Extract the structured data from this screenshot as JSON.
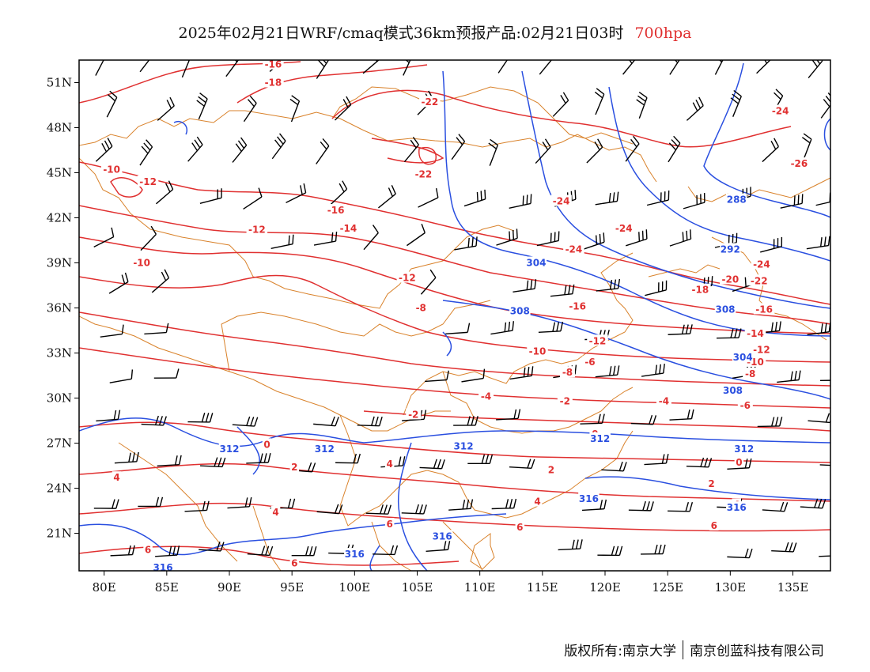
{
  "title": {
    "main": "2025年02月21日WRF/cmaq模式36km预报产品:02月21日03时",
    "level": "700hpa"
  },
  "colors": {
    "temperature_contour": "#e03030",
    "height_contour": "#2a4fe0",
    "borders": "#d9822b",
    "wind_barb": "#000000"
  },
  "map": {
    "lon_range": [
      78,
      138
    ],
    "lat_range": [
      18.5,
      52.5
    ],
    "lon_ticks": [
      {
        "v": 80,
        "label": "80E"
      },
      {
        "v": 85,
        "label": "85E"
      },
      {
        "v": 90,
        "label": "90E"
      },
      {
        "v": 95,
        "label": "95E"
      },
      {
        "v": 100,
        "label": "100E"
      },
      {
        "v": 105,
        "label": "105E"
      },
      {
        "v": 110,
        "label": "110E"
      },
      {
        "v": 115,
        "label": "115E"
      },
      {
        "v": 120,
        "label": "120E"
      },
      {
        "v": 125,
        "label": "125E"
      },
      {
        "v": 130,
        "label": "130E"
      },
      {
        "v": 135,
        "label": "135E"
      }
    ],
    "lat_ticks": [
      {
        "v": 51,
        "label": "51N"
      },
      {
        "v": 48,
        "label": "48N"
      },
      {
        "v": 45,
        "label": "45N"
      },
      {
        "v": 42,
        "label": "42N"
      },
      {
        "v": 39,
        "label": "39N"
      },
      {
        "v": 36,
        "label": "36N"
      },
      {
        "v": 33,
        "label": "33N"
      },
      {
        "v": 30,
        "label": "30N"
      },
      {
        "v": 27,
        "label": "27N"
      },
      {
        "v": 24,
        "label": "24N"
      },
      {
        "v": 21,
        "label": "21N"
      }
    ],
    "temperature_labels": [
      {
        "text": "-16",
        "lon": 93.5,
        "lat": 52.2
      },
      {
        "text": "-18",
        "lon": 93.5,
        "lat": 51.0
      },
      {
        "text": "-22",
        "lon": 106,
        "lat": 49.7
      },
      {
        "text": "-24",
        "lon": 134,
        "lat": 49.1
      },
      {
        "text": "-26",
        "lon": 135.5,
        "lat": 45.6
      },
      {
        "text": "-10",
        "lon": 80.6,
        "lat": 45.2
      },
      {
        "text": "-12",
        "lon": 83.5,
        "lat": 44.4
      },
      {
        "text": "-22",
        "lon": 105.5,
        "lat": 44.9
      },
      {
        "text": "-24",
        "lon": 116.5,
        "lat": 43.1
      },
      {
        "text": "-16",
        "lon": 98.5,
        "lat": 42.5
      },
      {
        "text": "-24",
        "lon": 121.5,
        "lat": 41.3
      },
      {
        "text": "-12",
        "lon": 92.2,
        "lat": 41.2
      },
      {
        "text": "-14",
        "lon": 99.5,
        "lat": 41.3
      },
      {
        "text": "-24",
        "lon": 117.5,
        "lat": 39.9
      },
      {
        "text": "-10",
        "lon": 83,
        "lat": 39.0
      },
      {
        "text": "-24",
        "lon": 132.5,
        "lat": 38.9
      },
      {
        "text": "-12",
        "lon": 104.2,
        "lat": 38.0
      },
      {
        "text": "-20",
        "lon": 130,
        "lat": 37.9
      },
      {
        "text": "-22",
        "lon": 132.3,
        "lat": 37.8
      },
      {
        "text": "-18",
        "lon": 127.6,
        "lat": 37.2
      },
      {
        "text": "-8",
        "lon": 105.3,
        "lat": 36.0
      },
      {
        "text": "-16",
        "lon": 117.8,
        "lat": 36.1
      },
      {
        "text": "-16",
        "lon": 132.7,
        "lat": 35.9
      },
      {
        "text": "-14",
        "lon": 132,
        "lat": 34.3
      },
      {
        "text": "-12",
        "lon": 119.4,
        "lat": 33.8
      },
      {
        "text": "-12",
        "lon": 132.5,
        "lat": 33.2
      },
      {
        "text": "-10",
        "lon": 114.6,
        "lat": 33.1
      },
      {
        "text": "-10",
        "lon": 132,
        "lat": 32.4
      },
      {
        "text": "-8",
        "lon": 131.6,
        "lat": 31.6
      },
      {
        "text": "-8",
        "lon": 117,
        "lat": 31.7
      },
      {
        "text": "-6",
        "lon": 118.8,
        "lat": 32.4
      },
      {
        "text": "-4",
        "lon": 110.5,
        "lat": 30.1
      },
      {
        "text": "-2",
        "lon": 116.8,
        "lat": 29.8
      },
      {
        "text": "-4",
        "lon": 124.7,
        "lat": 29.8
      },
      {
        "text": "-6",
        "lon": 131.2,
        "lat": 29.5
      },
      {
        "text": "-2",
        "lon": 104.7,
        "lat": 28.9
      },
      {
        "text": "0",
        "lon": 119.2,
        "lat": 27.6
      },
      {
        "text": "0",
        "lon": 93,
        "lat": 26.9
      },
      {
        "text": "2",
        "lon": 95.2,
        "lat": 25.4
      },
      {
        "text": "4",
        "lon": 102.8,
        "lat": 25.6
      },
      {
        "text": "2",
        "lon": 115.7,
        "lat": 25.2
      },
      {
        "text": "0",
        "lon": 130.7,
        "lat": 25.7
      },
      {
        "text": "4",
        "lon": 81,
        "lat": 24.7
      },
      {
        "text": "2",
        "lon": 128.5,
        "lat": 24.3
      },
      {
        "text": "4",
        "lon": 93.7,
        "lat": 22.4
      },
      {
        "text": "4",
        "lon": 114.6,
        "lat": 23.1
      },
      {
        "text": "4",
        "lon": 130.5,
        "lat": 22.9
      },
      {
        "text": "6",
        "lon": 102.8,
        "lat": 21.6
      },
      {
        "text": "6",
        "lon": 113.2,
        "lat": 21.4
      },
      {
        "text": "6",
        "lon": 128.7,
        "lat": 21.5
      },
      {
        "text": "6",
        "lon": 83.5,
        "lat": 19.9
      },
      {
        "text": "6",
        "lon": 95.2,
        "lat": 19.0
      }
    ],
    "height_labels": [
      {
        "text": "288",
        "lon": 130.5,
        "lat": 43.2
      },
      {
        "text": "292",
        "lon": 130,
        "lat": 39.9
      },
      {
        "text": "304",
        "lon": 114.5,
        "lat": 39.0
      },
      {
        "text": "308",
        "lon": 113.2,
        "lat": 35.8
      },
      {
        "text": "308",
        "lon": 129.6,
        "lat": 35.9
      },
      {
        "text": "304",
        "lon": 131,
        "lat": 32.7
      },
      {
        "text": "308",
        "lon": 130.2,
        "lat": 30.5
      },
      {
        "text": "312",
        "lon": 90,
        "lat": 26.6
      },
      {
        "text": "312",
        "lon": 97.6,
        "lat": 26.6
      },
      {
        "text": "312",
        "lon": 108.7,
        "lat": 26.8
      },
      {
        "text": "312",
        "lon": 119.6,
        "lat": 27.3
      },
      {
        "text": "312",
        "lon": 131.1,
        "lat": 26.6
      },
      {
        "text": "316",
        "lon": 118.7,
        "lat": 23.3
      },
      {
        "text": "316",
        "lon": 130.5,
        "lat": 22.7
      },
      {
        "text": "316",
        "lon": 107,
        "lat": 20.8
      },
      {
        "text": "316",
        "lon": 100,
        "lat": 19.6
      },
      {
        "text": "316",
        "lon": 84.7,
        "lat": 18.7
      }
    ]
  },
  "credit": {
    "left": "版权所有:南京大学",
    "right": "南京创蓝科技有限公司"
  }
}
